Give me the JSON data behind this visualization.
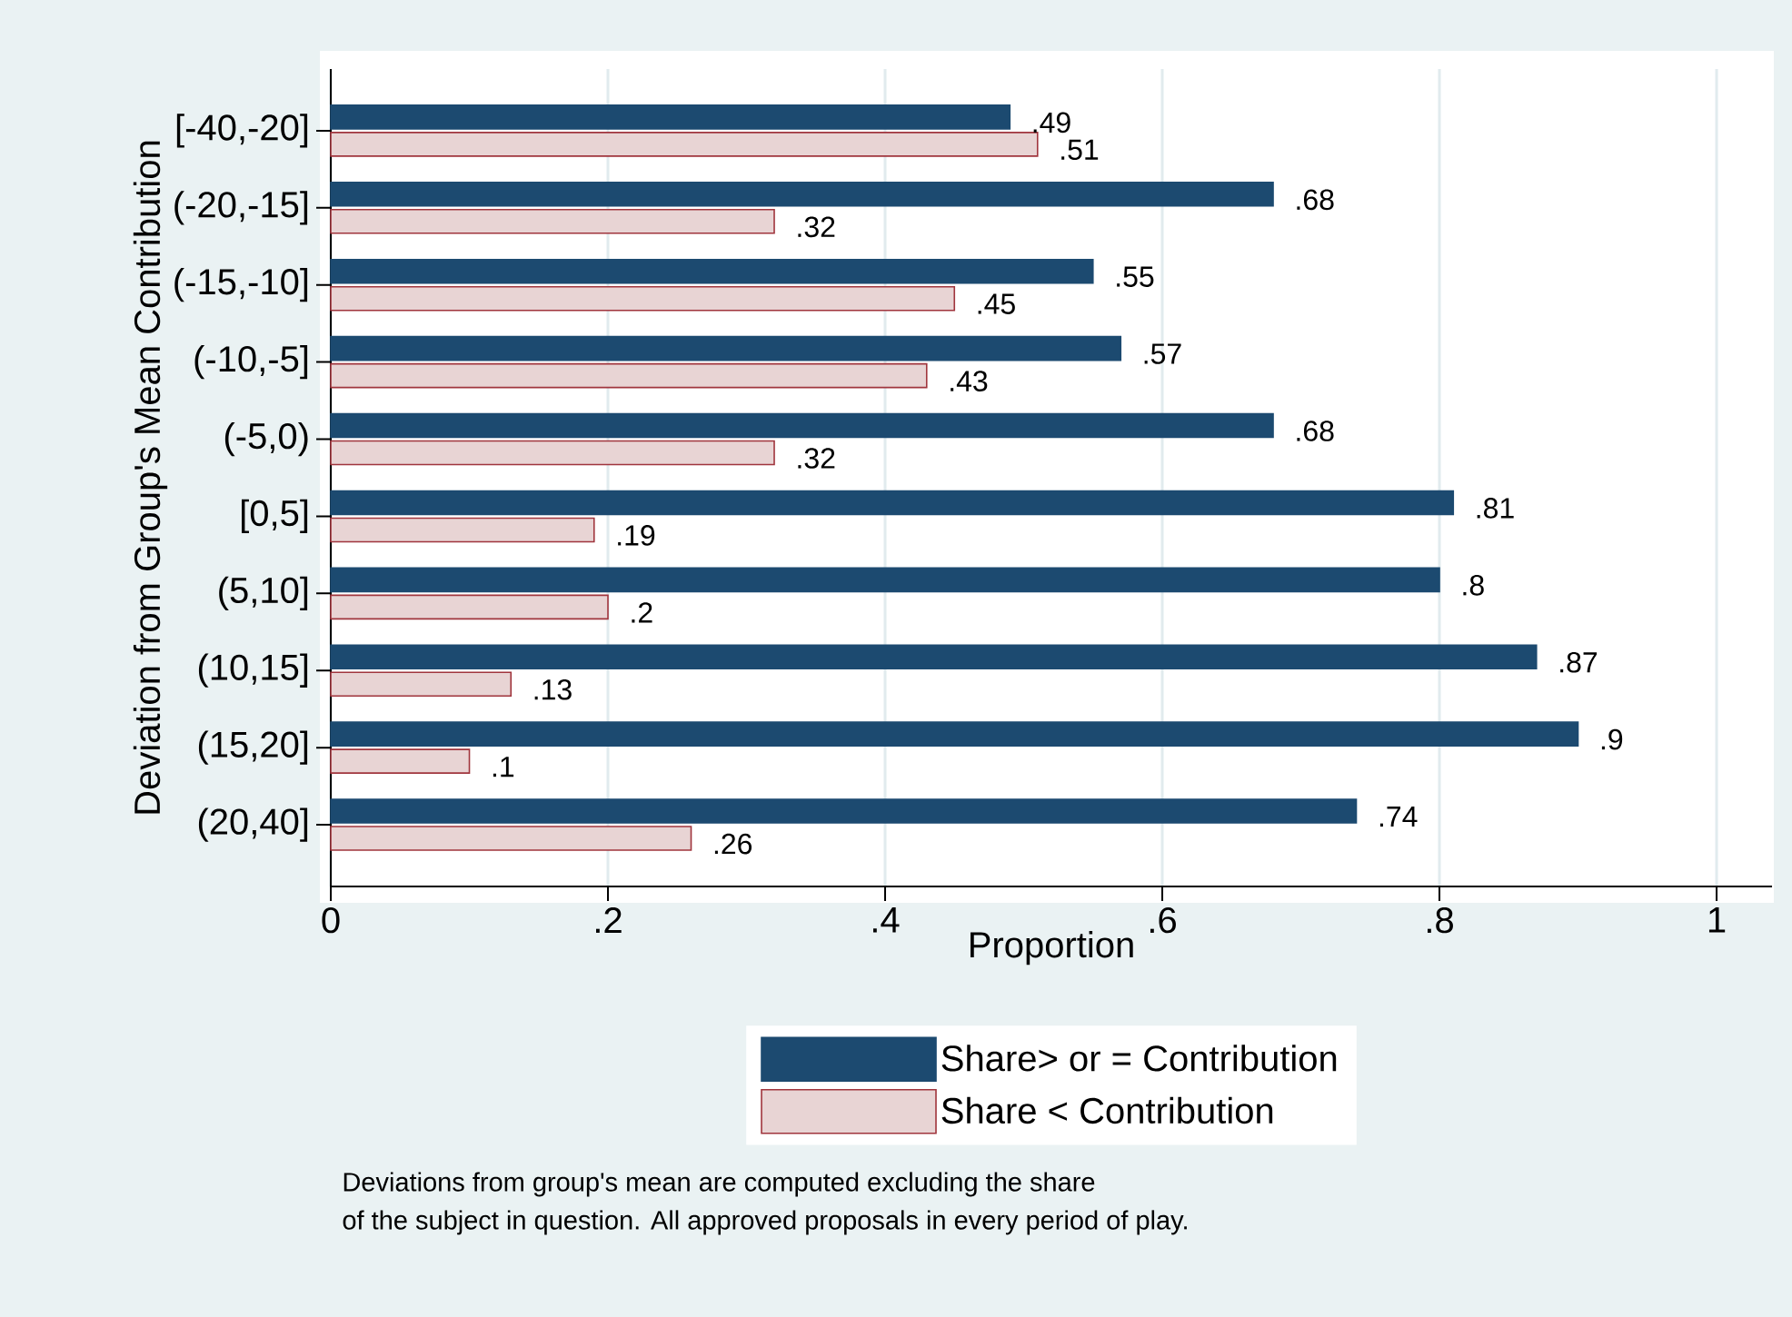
{
  "chart_data": {
    "type": "bar",
    "orientation": "horizontal",
    "ylabel": "Deviation from Group's Mean Contribution",
    "xlabel": "Proportion",
    "categories": [
      "[-40,-20]",
      "(-20,-15]",
      "(-15,-10]",
      "(-10,-5]",
      "(-5,0)",
      "[0,5]",
      "(5,10]",
      "(10,15]",
      "(15,20]",
      "(20,40]"
    ],
    "series": [
      {
        "name": "Share> or = Contribution",
        "color": "#1c4a70",
        "values": [
          0.49,
          0.68,
          0.55,
          0.57,
          0.68,
          0.81,
          0.8,
          0.87,
          0.9,
          0.74
        ],
        "value_labels": [
          ".49",
          ".68",
          ".55",
          ".57",
          ".68",
          ".81",
          ".8",
          ".87",
          ".9",
          ".74"
        ]
      },
      {
        "name": "Share < Contribution",
        "color": "#e8d4d4",
        "values": [
          0.51,
          0.32,
          0.45,
          0.43,
          0.32,
          0.19,
          0.2,
          0.13,
          0.1,
          0.26
        ],
        "value_labels": [
          ".51",
          ".32",
          ".45",
          ".43",
          ".32",
          ".19",
          ".2",
          ".13",
          ".1",
          ".26"
        ]
      }
    ],
    "xlim": [
      0,
      1.04
    ],
    "xticks": [
      0,
      {
        "value": 0.2,
        "label": ".2"
      },
      {
        "value": 0.4,
        "label": ".4"
      },
      {
        "value": 0.6,
        "label": ".6"
      },
      {
        "value": 0.8,
        "label": ".8"
      },
      1
    ],
    "grid": "x",
    "legend": "bottom",
    "annotations": [
      "Deviations from group's mean are computed excluding the share",
      "of the subject in question. All approved proposals in every period of play."
    ]
  }
}
